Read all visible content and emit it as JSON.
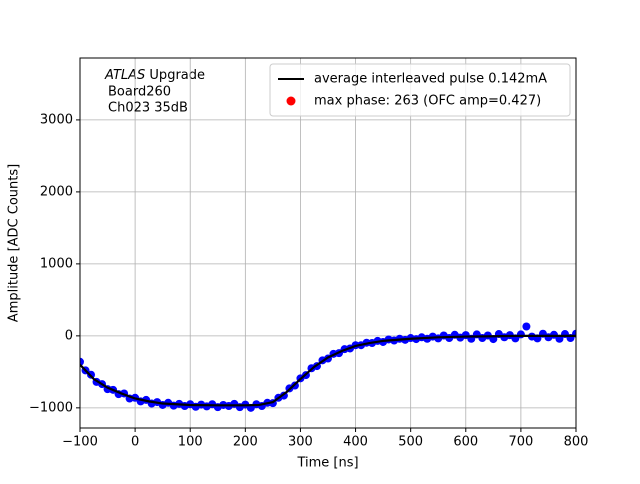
{
  "chart_data": {
    "type": "line",
    "xlabel": "Time [ns]",
    "ylabel": "Amplitude [ADC Counts]",
    "xlim": [
      -100,
      800
    ],
    "ylim": [
      -1280,
      3860
    ],
    "xticks": [
      {
        "value": -100,
        "label": "−100"
      },
      0,
      100,
      200,
      300,
      400,
      500,
      600,
      700,
      800
    ],
    "yticks": [
      {
        "value": -1000,
        "label": "−1000"
      },
      0,
      1000,
      2000,
      3000
    ],
    "grid": true,
    "legend": "upper right",
    "annotation": {
      "italic": "ATLAS",
      "text": "Upgrade",
      "lines": [
        "Board260",
        "Ch023 35dB"
      ]
    },
    "series": [
      {
        "color": "blue",
        "kind": "scatter",
        "x": [
          -100,
          -90,
          -80,
          -70,
          -60,
          -50,
          -40,
          -30,
          -20,
          -10,
          0,
          10,
          20,
          30,
          40,
          50,
          60,
          70,
          80,
          90,
          100,
          110,
          120,
          130,
          140,
          150,
          160,
          170,
          180,
          190,
          200,
          210,
          220,
          230,
          240,
          250,
          260,
          270,
          280,
          290,
          300,
          310,
          320,
          330,
          340,
          350,
          360,
          370,
          380,
          390,
          400,
          410,
          420,
          430,
          440,
          450,
          460,
          470,
          480,
          490,
          500,
          510,
          520,
          530,
          540,
          550,
          560,
          570,
          580,
          590,
          600,
          610,
          620,
          630,
          640,
          650,
          660,
          670,
          680,
          690,
          700,
          710,
          720,
          730,
          740,
          750,
          760,
          770,
          780,
          790,
          800
        ],
        "values": [
          -360,
          -480,
          -540,
          -640,
          -670,
          -740,
          -750,
          -810,
          -800,
          -870,
          -860,
          -910,
          -890,
          -940,
          -920,
          -960,
          -930,
          -970,
          -945,
          -975,
          -950,
          -985,
          -955,
          -980,
          -950,
          -990,
          -960,
          -975,
          -945,
          -990,
          -955,
          -1000,
          -950,
          -975,
          -930,
          -935,
          -860,
          -830,
          -730,
          -690,
          -590,
          -545,
          -450,
          -420,
          -340,
          -315,
          -250,
          -240,
          -185,
          -175,
          -130,
          -130,
          -95,
          -100,
          -70,
          -85,
          -50,
          -65,
          -40,
          -55,
          -30,
          -45,
          -20,
          -40,
          -10,
          -35,
          5,
          -30,
          15,
          -25,
          10,
          -40,
          20,
          -30,
          5,
          -45,
          25,
          -20,
          10,
          -35,
          20,
          130,
          -10,
          -35,
          30,
          -20,
          15,
          -40,
          25,
          -30,
          30
        ]
      },
      {
        "name": "average interleaved pulse 0.142mA",
        "color": "black",
        "kind": "line",
        "x": [
          -100,
          -75,
          -50,
          -25,
          0,
          25,
          50,
          75,
          100,
          150,
          200,
          225,
          250,
          275,
          300,
          325,
          350,
          375,
          400,
          425,
          450,
          500,
          550,
          600,
          650,
          700,
          750,
          800
        ],
        "values": [
          -400,
          -600,
          -720,
          -800,
          -870,
          -910,
          -940,
          -950,
          -960,
          -965,
          -965,
          -960,
          -920,
          -780,
          -600,
          -430,
          -300,
          -210,
          -140,
          -100,
          -70,
          -40,
          -20,
          -10,
          -5,
          0,
          0,
          0
        ]
      },
      {
        "name": "max phase: 263 (OFC amp=0.427)",
        "color": "red",
        "kind": "scatter",
        "x": [],
        "values": []
      }
    ]
  }
}
